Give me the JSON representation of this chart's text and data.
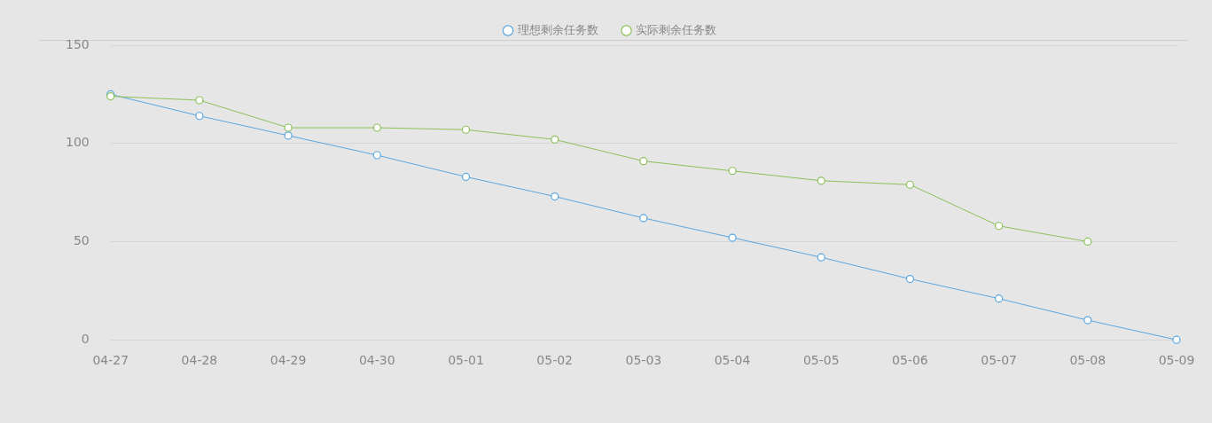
{
  "chart_data": {
    "type": "line",
    "categories": [
      "04-27",
      "04-28",
      "04-29",
      "04-30",
      "05-01",
      "05-02",
      "05-03",
      "05-04",
      "05-05",
      "05-06",
      "05-07",
      "05-08",
      "05-09"
    ],
    "series": [
      {
        "name": "理想剩余任务数",
        "color": "#5aa6e0",
        "values": [
          125,
          114,
          104,
          94,
          83,
          73,
          62,
          52,
          42,
          31,
          21,
          10,
          0
        ]
      },
      {
        "name": "实际剩余任务数",
        "color": "#8cc05a",
        "values": [
          124,
          122,
          108,
          108,
          107,
          102,
          91,
          86,
          81,
          79,
          58,
          50,
          null
        ]
      }
    ],
    "ylim": [
      0,
      150
    ],
    "yticks": [
      0,
      50,
      100,
      150
    ],
    "grid": "y",
    "legend": "top",
    "marker": "circle",
    "line_style": "solid"
  }
}
